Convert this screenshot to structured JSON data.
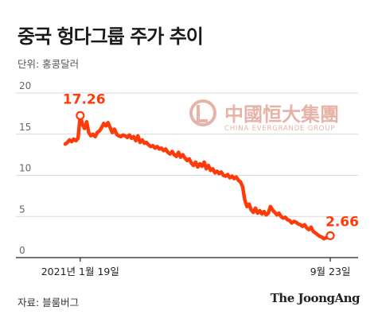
{
  "header": {
    "title": "중국 헝다그룹 주가 추이",
    "unit": "단위: 홍콩달러"
  },
  "footer": {
    "source": "자료: 블룸버그",
    "brand": "The JoongAng"
  },
  "watermark": {
    "logo_text": "中國恒大集團",
    "logo_sub": "CHINA EVERGRANDE GROUP",
    "color": "#e6b3a8"
  },
  "colors": {
    "line": "#ff3b0a",
    "axis": "#222222",
    "grid": "#d9d9d9",
    "annotation": "#ff3b0a"
  },
  "chart_data": {
    "type": "line",
    "title": "중국 헝다그룹 주가 추이",
    "ylabel": "단위: 홍콩달러",
    "ylim": [
      0,
      20
    ],
    "yticks": [
      0,
      5,
      10,
      15,
      20
    ],
    "grid": true,
    "x_tick_labels": [
      "2021년 1월 19일",
      "9월 23일"
    ],
    "annotations": [
      {
        "label": "17.26",
        "value": 17.26,
        "index": 7
      },
      {
        "label": "2.66",
        "value": 2.66,
        "index": 124
      }
    ],
    "series": [
      {
        "values": [
          13.8,
          14.0,
          14.3,
          14.1,
          14.4,
          14.2,
          14.5,
          17.26,
          16.2,
          15.7,
          16.5,
          15.2,
          14.8,
          15.0,
          14.7,
          15.2,
          15.4,
          15.8,
          16.3,
          16.0,
          16.4,
          15.8,
          15.2,
          15.6,
          15.0,
          14.8,
          14.7,
          14.9,
          14.8,
          14.6,
          14.9,
          14.5,
          14.7,
          14.2,
          14.8,
          14.0,
          14.3,
          13.9,
          14.0,
          13.7,
          13.5,
          13.6,
          13.3,
          13.5,
          13.2,
          13.3,
          13.0,
          13.2,
          12.8,
          12.6,
          12.9,
          12.5,
          12.3,
          12.8,
          12.2,
          12.5,
          12.1,
          11.8,
          12.0,
          11.5,
          11.2,
          11.6,
          11.0,
          11.4,
          11.1,
          11.6,
          10.8,
          11.2,
          10.6,
          10.8,
          10.3,
          10.5,
          10.2,
          10.4,
          10.0,
          9.9,
          10.1,
          9.7,
          9.9,
          9.6,
          9.8,
          9.4,
          9.2,
          8.6,
          7.0,
          6.2,
          6.5,
          5.8,
          5.5,
          6.0,
          5.4,
          5.7,
          5.3,
          5.6,
          5.2,
          5.4,
          6.2,
          5.8,
          5.5,
          5.2,
          5.4,
          5.0,
          4.8,
          4.9,
          4.6,
          4.5,
          4.2,
          4.4,
          4.3,
          4.1,
          4.0,
          3.8,
          4.0,
          3.6,
          3.4,
          3.7,
          3.2,
          3.0,
          2.8,
          2.6,
          2.5,
          2.3,
          2.4,
          2.5,
          2.66
        ]
      }
    ]
  }
}
